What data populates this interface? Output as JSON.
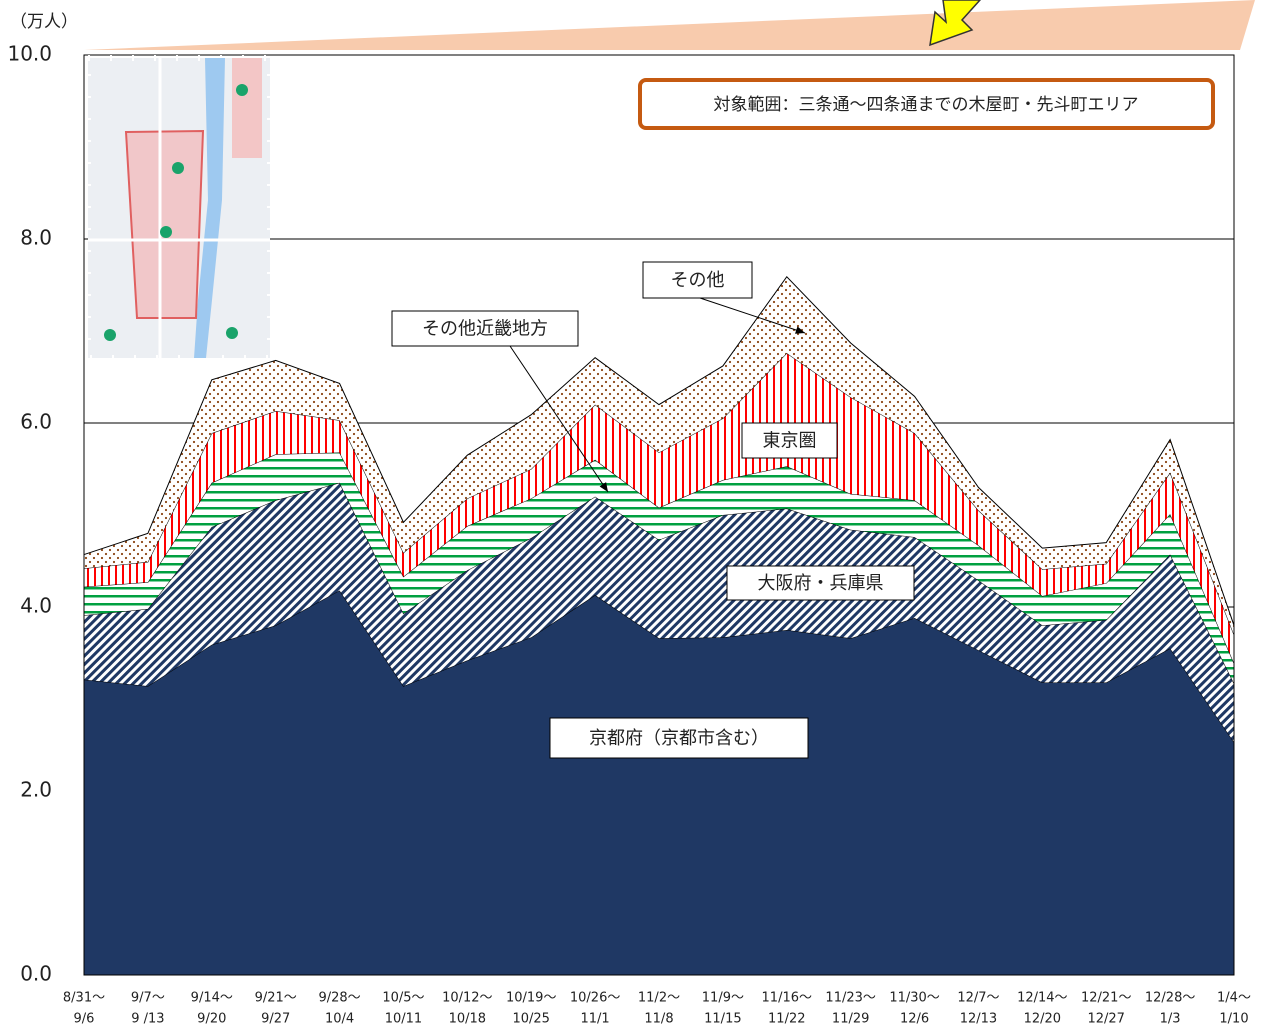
{
  "chart_data": {
    "type": "stacked-area",
    "y_unit": "（万人）",
    "annotation": "対象範囲：三条通～四条通までの木屋町・先斗町エリア",
    "categories": [
      [
        "8/31～",
        "9/6"
      ],
      [
        "9/7～",
        "9 /13"
      ],
      [
        "9/14～",
        "9/20"
      ],
      [
        "9/21～",
        "9/27"
      ],
      [
        "9/28～",
        "10/4"
      ],
      [
        "10/5～",
        "10/11"
      ],
      [
        "10/12～",
        "10/18"
      ],
      [
        "10/19～",
        "10/25"
      ],
      [
        "10/26～",
        "11/1"
      ],
      [
        "11/2～",
        "11/8"
      ],
      [
        "11/9～",
        "11/15"
      ],
      [
        "11/16～",
        "11/22"
      ],
      [
        "11/23～",
        "11/29"
      ],
      [
        "11/30～",
        "12/6"
      ],
      [
        "12/7～",
        "12/13"
      ],
      [
        "12/14～",
        "12/20"
      ],
      [
        "12/21～",
        "12/27"
      ],
      [
        "12/28～",
        "1/3"
      ],
      [
        "1/4～",
        "1/10"
      ]
    ],
    "series": [
      {
        "name": "京都府（京都市含む）",
        "color": "#1f3864",
        "values": [
          3.21,
          3.14,
          3.59,
          3.8,
          4.18,
          3.14,
          3.42,
          3.67,
          4.13,
          3.66,
          3.67,
          3.75,
          3.66,
          3.88,
          3.53,
          3.18,
          3.18,
          3.55,
          2.53
        ]
      },
      {
        "name": "大阪府・兵庫県",
        "color": "#1f3864",
        "values": [
          0.7,
          0.84,
          1.28,
          1.36,
          1.17,
          0.79,
          0.98,
          1.08,
          1.07,
          1.07,
          1.33,
          1.32,
          1.18,
          0.88,
          0.76,
          0.62,
          0.68,
          1.02,
          0.64
        ]
      },
      {
        "name": "その他近畿地方",
        "color": "#00a040",
        "values": [
          0.31,
          0.29,
          0.48,
          0.5,
          0.33,
          0.4,
          0.48,
          0.43,
          0.4,
          0.35,
          0.38,
          0.46,
          0.39,
          0.4,
          0.38,
          0.32,
          0.4,
          0.44,
          0.22
        ]
      },
      {
        "name": "東京圏",
        "color": "#ff0000",
        "values": [
          0.2,
          0.22,
          0.54,
          0.47,
          0.35,
          0.26,
          0.3,
          0.32,
          0.6,
          0.6,
          0.67,
          1.23,
          1.05,
          0.73,
          0.38,
          0.29,
          0.21,
          0.45,
          0.31
        ]
      },
      {
        "name": "その他",
        "color": "#8b4513",
        "values": [
          0.15,
          0.31,
          0.58,
          0.55,
          0.4,
          0.33,
          0.47,
          0.59,
          0.51,
          0.52,
          0.57,
          0.83,
          0.59,
          0.4,
          0.25,
          0.23,
          0.23,
          0.36,
          0.1
        ]
      }
    ],
    "ylim": [
      0,
      10
    ],
    "yticks": [
      {
        "value": 0,
        "label": "0.0"
      },
      {
        "value": 2,
        "label": "2.0"
      },
      {
        "value": 4,
        "label": "4.0"
      },
      {
        "value": 6,
        "label": "6.0"
      },
      {
        "value": 8,
        "label": "8.0"
      },
      {
        "value": 10,
        "label": "10.0"
      }
    ],
    "grid": true
  }
}
